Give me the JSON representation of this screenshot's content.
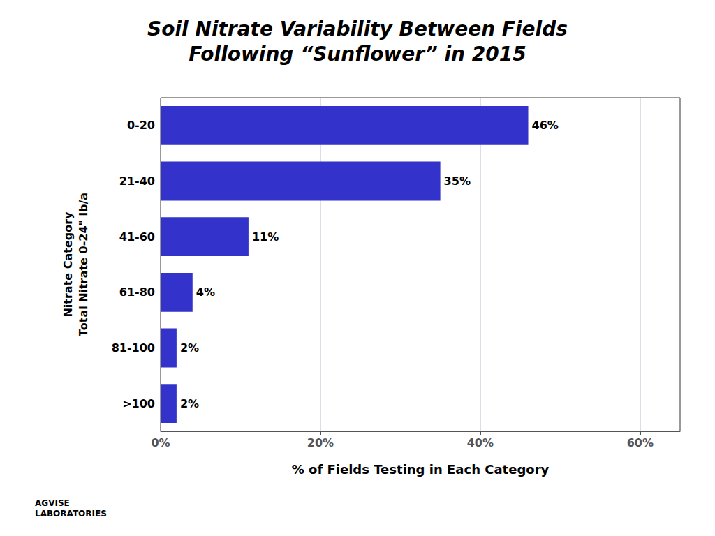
{
  "chart_data": {
    "type": "bar",
    "orientation": "horizontal",
    "title": "Soil Nitrate Variability Between Fields\nFollowing “Sunflower” in 2015",
    "categories": [
      ">100",
      "81-100",
      "61-80",
      "41-60",
      "21-40",
      "0-20"
    ],
    "values": [
      2,
      2,
      4,
      11,
      35,
      46
    ],
    "value_labels": [
      "2%",
      "2%",
      "4%",
      "11%",
      "35%",
      "46%"
    ],
    "data_labels": true,
    "color": "#3333cc",
    "xlabel": "% of Fields Testing in Each Category",
    "ylabel": "Nitrate Category\nTotal Nitrate 0-24\" lb/a",
    "xlim": [
      0,
      65
    ],
    "xticks": [
      {
        "value": 0,
        "label": "0%"
      },
      {
        "value": 20,
        "label": "20%"
      },
      {
        "value": 40,
        "label": "40%"
      },
      {
        "value": 60,
        "label": "60%"
      }
    ],
    "grid": true,
    "annotations": [
      "AGVISE\nLABORATORIES"
    ]
  }
}
